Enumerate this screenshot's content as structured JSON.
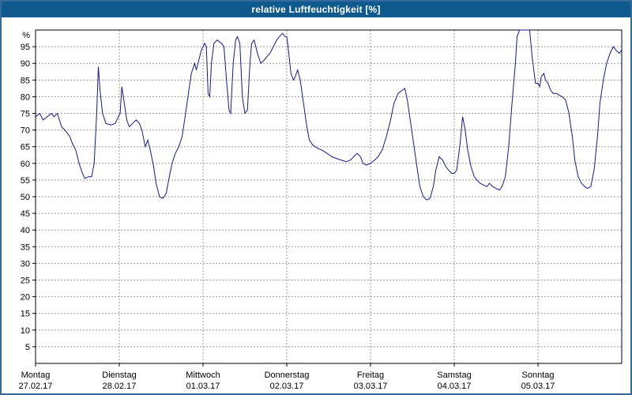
{
  "window": {
    "title": "relative Luftfeuchtigkeit [%]"
  },
  "colors": {
    "title_bar_bg": "#0e5a8e",
    "title_text": "#ffffff",
    "line": "#18188f",
    "grid": "#999999",
    "axis": "#000000",
    "border": "#36699c",
    "plot_bg": "#ffffff"
  },
  "chart_data": {
    "type": "line",
    "title": "relative Luftfeuchtigkeit [%]",
    "y_unit": "%",
    "ylim": [
      0,
      100
    ],
    "y_ticks": [
      5,
      10,
      15,
      20,
      25,
      30,
      35,
      40,
      45,
      50,
      55,
      60,
      65,
      70,
      75,
      80,
      85,
      90,
      95
    ],
    "x_range_days": [
      0,
      7
    ],
    "grid": "dashed",
    "x_axis_days": [
      {
        "name": "Montag",
        "date": "27.02.17"
      },
      {
        "name": "Dienstag",
        "date": "28.02.17"
      },
      {
        "name": "Mittwoch",
        "date": "01.03.17"
      },
      {
        "name": "Donnerstag",
        "date": "02.03.17"
      },
      {
        "name": "Freitag",
        "date": "03.03.17"
      },
      {
        "name": "Samstag",
        "date": "04.03.17"
      },
      {
        "name": "Sonntag",
        "date": "05.03.17"
      }
    ],
    "series": [
      {
        "name": "relative-luftfeuchtigkeit",
        "color": "#18188f",
        "points": [
          [
            0.0,
            74
          ],
          [
            0.05,
            75
          ],
          [
            0.09,
            73
          ],
          [
            0.14,
            74
          ],
          [
            0.19,
            75
          ],
          [
            0.22,
            74
          ],
          [
            0.26,
            75
          ],
          [
            0.31,
            71
          ],
          [
            0.35,
            70
          ],
          [
            0.41,
            68
          ],
          [
            0.44,
            66
          ],
          [
            0.48,
            64
          ],
          [
            0.52,
            60
          ],
          [
            0.56,
            57
          ],
          [
            0.59,
            55.5
          ],
          [
            0.63,
            56
          ],
          [
            0.67,
            56
          ],
          [
            0.7,
            60
          ],
          [
            0.73,
            75
          ],
          [
            0.75,
            89
          ],
          [
            0.77,
            82
          ],
          [
            0.8,
            75
          ],
          [
            0.84,
            72
          ],
          [
            0.9,
            71.5
          ],
          [
            0.95,
            72
          ],
          [
            0.99,
            74
          ],
          [
            1.01,
            75
          ],
          [
            1.03,
            83
          ],
          [
            1.06,
            78
          ],
          [
            1.09,
            73
          ],
          [
            1.12,
            71
          ],
          [
            1.16,
            72
          ],
          [
            1.2,
            73
          ],
          [
            1.24,
            72
          ],
          [
            1.27,
            70
          ],
          [
            1.31,
            65
          ],
          [
            1.34,
            67
          ],
          [
            1.37,
            64
          ],
          [
            1.41,
            59
          ],
          [
            1.44,
            54
          ],
          [
            1.48,
            50
          ],
          [
            1.52,
            49.5
          ],
          [
            1.56,
            51
          ],
          [
            1.59,
            55
          ],
          [
            1.63,
            60
          ],
          [
            1.67,
            63
          ],
          [
            1.71,
            65
          ],
          [
            1.75,
            68
          ],
          [
            1.78,
            73
          ],
          [
            1.82,
            80
          ],
          [
            1.86,
            87
          ],
          [
            1.9,
            90
          ],
          [
            1.92,
            88
          ],
          [
            1.95,
            91
          ],
          [
            1.98,
            94
          ],
          [
            2.0,
            95
          ],
          [
            2.02,
            96
          ],
          [
            2.04,
            95
          ],
          [
            2.06,
            81
          ],
          [
            2.08,
            80
          ],
          [
            2.1,
            90
          ],
          [
            2.13,
            96
          ],
          [
            2.17,
            97
          ],
          [
            2.22,
            96
          ],
          [
            2.25,
            95
          ],
          [
            2.28,
            85
          ],
          [
            2.31,
            76
          ],
          [
            2.33,
            75
          ],
          [
            2.36,
            90
          ],
          [
            2.39,
            97
          ],
          [
            2.41,
            98
          ],
          [
            2.44,
            96
          ],
          [
            2.47,
            80
          ],
          [
            2.5,
            75
          ],
          [
            2.53,
            76
          ],
          [
            2.56,
            90
          ],
          [
            2.58,
            96
          ],
          [
            2.61,
            97
          ],
          [
            2.65,
            93
          ],
          [
            2.69,
            90
          ],
          [
            2.73,
            91
          ],
          [
            2.76,
            92
          ],
          [
            2.8,
            93
          ],
          [
            2.84,
            95
          ],
          [
            2.88,
            97
          ],
          [
            2.91,
            98
          ],
          [
            2.95,
            99
          ],
          [
            2.98,
            98
          ],
          [
            3.0,
            98
          ],
          [
            3.02,
            94
          ],
          [
            3.05,
            87
          ],
          [
            3.08,
            85
          ],
          [
            3.1,
            86
          ],
          [
            3.13,
            88
          ],
          [
            3.16,
            85
          ],
          [
            3.2,
            78
          ],
          [
            3.24,
            71
          ],
          [
            3.27,
            67
          ],
          [
            3.31,
            65.5
          ],
          [
            3.37,
            64.5
          ],
          [
            3.42,
            64
          ],
          [
            3.48,
            63
          ],
          [
            3.54,
            62
          ],
          [
            3.59,
            61.5
          ],
          [
            3.65,
            61
          ],
          [
            3.71,
            60.5
          ],
          [
            3.76,
            61
          ],
          [
            3.8,
            62
          ],
          [
            3.84,
            63
          ],
          [
            3.88,
            62
          ],
          [
            3.91,
            60
          ],
          [
            3.95,
            59.5
          ],
          [
            4.0,
            60
          ],
          [
            4.05,
            61
          ],
          [
            4.09,
            62
          ],
          [
            4.14,
            64
          ],
          [
            4.19,
            68
          ],
          [
            4.24,
            73
          ],
          [
            4.28,
            78
          ],
          [
            4.33,
            81
          ],
          [
            4.38,
            82
          ],
          [
            4.41,
            82.5
          ],
          [
            4.44,
            79
          ],
          [
            4.48,
            72
          ],
          [
            4.52,
            65
          ],
          [
            4.56,
            58
          ],
          [
            4.59,
            53
          ],
          [
            4.63,
            50
          ],
          [
            4.67,
            49
          ],
          [
            4.71,
            49.5
          ],
          [
            4.75,
            53
          ],
          [
            4.78,
            58
          ],
          [
            4.82,
            62
          ],
          [
            4.86,
            61
          ],
          [
            4.9,
            59
          ],
          [
            4.93,
            58
          ],
          [
            4.97,
            57
          ],
          [
            5.0,
            57
          ],
          [
            5.03,
            58
          ],
          [
            5.07,
            66
          ],
          [
            5.1,
            74
          ],
          [
            5.13,
            70
          ],
          [
            5.16,
            64
          ],
          [
            5.2,
            59
          ],
          [
            5.24,
            56
          ],
          [
            5.27,
            55
          ],
          [
            5.31,
            54
          ],
          [
            5.35,
            53.5
          ],
          [
            5.39,
            53
          ],
          [
            5.42,
            54
          ],
          [
            5.46,
            53
          ],
          [
            5.5,
            52.5
          ],
          [
            5.54,
            52
          ],
          [
            5.57,
            53
          ],
          [
            5.61,
            56
          ],
          [
            5.65,
            65
          ],
          [
            5.69,
            78
          ],
          [
            5.73,
            90
          ],
          [
            5.75,
            98
          ],
          [
            5.78,
            100
          ],
          [
            5.86,
            100
          ],
          [
            5.9,
            100
          ],
          [
            5.93,
            92
          ],
          [
            5.97,
            84
          ],
          [
            6.0,
            84
          ],
          [
            6.02,
            83
          ],
          [
            6.04,
            86
          ],
          [
            6.07,
            87
          ],
          [
            6.09,
            85
          ],
          [
            6.12,
            84
          ],
          [
            6.15,
            82
          ],
          [
            6.18,
            81
          ],
          [
            6.22,
            81
          ],
          [
            6.25,
            80.5
          ],
          [
            6.29,
            80
          ],
          [
            6.33,
            79
          ],
          [
            6.37,
            75
          ],
          [
            6.41,
            68
          ],
          [
            6.44,
            61
          ],
          [
            6.48,
            56
          ],
          [
            6.52,
            54
          ],
          [
            6.56,
            53
          ],
          [
            6.59,
            52.5
          ],
          [
            6.63,
            53
          ],
          [
            6.67,
            58
          ],
          [
            6.71,
            68
          ],
          [
            6.74,
            78
          ],
          [
            6.78,
            85
          ],
          [
            6.82,
            90
          ],
          [
            6.86,
            93
          ],
          [
            6.9,
            95
          ],
          [
            6.93,
            94
          ],
          [
            6.97,
            93
          ],
          [
            7.0,
            94
          ]
        ]
      }
    ]
  }
}
